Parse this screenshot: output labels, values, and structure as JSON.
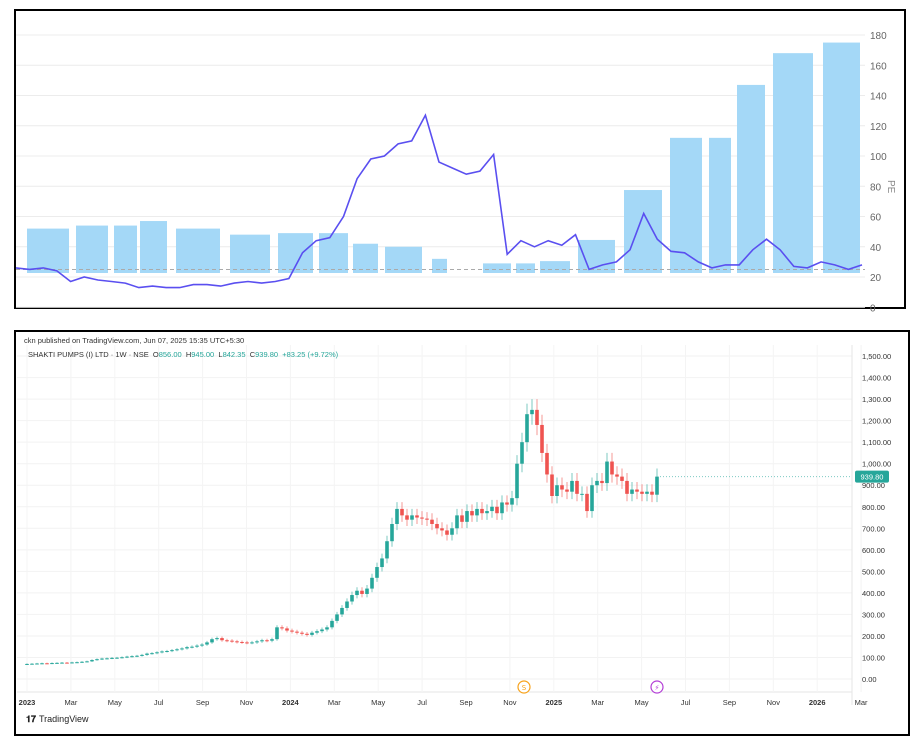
{
  "chart_data": [
    {
      "type": "bar+line",
      "ylabel": "PE",
      "yticks": [
        0,
        20,
        40,
        60,
        80,
        100,
        120,
        140,
        160,
        180
      ],
      "ylim": [
        0,
        180
      ],
      "grid": true,
      "reference_line": 25,
      "bar_series": {
        "name": "PE (period)",
        "color": "#a4d8f7",
        "values": [
          52,
          54,
          54,
          57,
          52,
          48,
          49,
          49,
          42,
          40,
          32,
          29,
          29,
          30.5,
          44.5,
          77.5,
          112,
          112,
          147,
          168,
          175
        ]
      },
      "line_series": {
        "name": "PE (daily)",
        "color": "#5a4ff0",
        "values": [
          26,
          25,
          26,
          24,
          17,
          20,
          18,
          17,
          16,
          13,
          14,
          13,
          13,
          15,
          15,
          14,
          16,
          17,
          16,
          17,
          19,
          36,
          44,
          46,
          60,
          85,
          98,
          100,
          108,
          110,
          127,
          96,
          92,
          88,
          90,
          101,
          35,
          44,
          40,
          44,
          41,
          48,
          25,
          28,
          30,
          38,
          62,
          45,
          37,
          36,
          30,
          26,
          28,
          28,
          38,
          45,
          38,
          27,
          26,
          30,
          28,
          25,
          28
        ]
      }
    },
    {
      "type": "candlestick",
      "title": "SHAKTI PUMPS (I) LTD · 1W · NSE",
      "ohlc_label": {
        "o_key": "O",
        "o": "856.00",
        "h_key": "H",
        "h": "945.00",
        "l_key": "L",
        "l": "842.35",
        "c_key": "C",
        "c": "939.80",
        "change": "+83.25 (+9.72%)"
      },
      "last_price": "939.80",
      "yticks": [
        "1,500.00",
        "1,400.00",
        "1,300.00",
        "1,200.00",
        "1,100.00",
        "1,000.00",
        "900.00",
        "800.00",
        "700.00",
        "600.00",
        "500.00",
        "400.00",
        "300.00",
        "200.00",
        "100.00",
        "0.00"
      ],
      "ylim": [
        0,
        1500
      ],
      "xticks": [
        "2023",
        "Mar",
        "May",
        "Jul",
        "Sep",
        "Nov",
        "2024",
        "Mar",
        "May",
        "Jul",
        "Sep",
        "Nov",
        "2025",
        "Mar",
        "May",
        "Jul",
        "Sep",
        "Nov",
        "2026",
        "Mar"
      ],
      "bold_xticks": [
        "2023",
        "2024",
        "2025",
        "2026"
      ],
      "up_color": "#26a69a",
      "down_color": "#ef5350",
      "weekly_closes": [
        70,
        71,
        72,
        73,
        72,
        74,
        75,
        76,
        75,
        77,
        78,
        80,
        82,
        88,
        92,
        95,
        96,
        98,
        99,
        101,
        104,
        106,
        108,
        112,
        118,
        120,
        124,
        128,
        130,
        134,
        138,
        142,
        148,
        150,
        155,
        160,
        170,
        185,
        190,
        180,
        178,
        175,
        172,
        170,
        168,
        170,
        175,
        180,
        178,
        185,
        240,
        235,
        225,
        220,
        215,
        210,
        205,
        215,
        222,
        230,
        240,
        270,
        300,
        330,
        360,
        390,
        410,
        395,
        420,
        470,
        520,
        560,
        640,
        720,
        790,
        760,
        740,
        760,
        750,
        745,
        740,
        720,
        700,
        690,
        670,
        700,
        760,
        730,
        780,
        760,
        790,
        770,
        780,
        800,
        770,
        820,
        810,
        840,
        1000,
        1100,
        1230,
        1250,
        1180,
        1050,
        950,
        850,
        900,
        880,
        870,
        920,
        860,
        860,
        780,
        900,
        920,
        910,
        1010,
        950,
        940,
        920,
        860,
        880,
        870,
        860,
        870,
        856,
        940
      ],
      "markers": [
        {
          "label": "S",
          "color": "#f7a21b"
        },
        {
          "label": "⚡",
          "color": "#b33fd6"
        }
      ]
    }
  ],
  "header": {
    "published": "ckn published on TradingView.com, Jun 07, 2025 15:35 UTC+5:30"
  },
  "footer": {
    "logo_mark": "𝟏𝟕",
    "logo_text": "TradingView"
  }
}
